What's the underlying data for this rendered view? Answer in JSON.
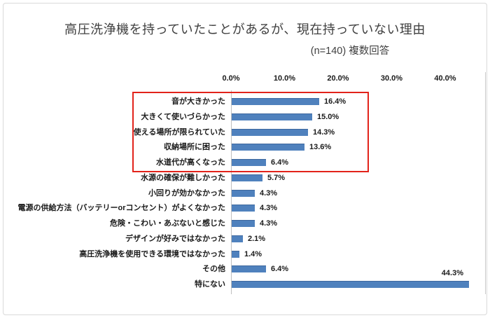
{
  "window": {
    "background": "#FFFFFF",
    "border_color": "#D9D9D9"
  },
  "chart": {
    "title": "高圧洗浄機を持っていたことがあるが、現在持っていない理由",
    "subtitle": "(n=140) 複数回答"
  },
  "chart_data": {
    "type": "bar",
    "orientation": "horizontal",
    "title": "高圧洗浄機を持っていたことがあるが、現在持っていない理由",
    "subtitle": "(n=140) 複数回答",
    "n": 140,
    "categories": [
      "音が大きかった",
      "大きくて使いづらかった",
      "使える場所が限られていた",
      "収納場所に困った",
      "水道代が高くなった",
      "水源の確保が難しかった",
      "小回りが効かなかった",
      "電源の供給方法（バッテリーorコンセント）がよくなかった",
      "危険・こわい・あぶないと感じた",
      "デザインが好みではなかった",
      "高圧洗浄機を使用できる環境ではなかった",
      "その他",
      "特にない"
    ],
    "values": [
      16.4,
      15.0,
      14.3,
      13.6,
      6.4,
      5.7,
      4.3,
      4.3,
      4.3,
      2.1,
      1.4,
      6.4,
      44.3
    ],
    "value_labels": [
      "16.4%",
      "15.0%",
      "14.3%",
      "13.6%",
      "6.4%",
      "5.7%",
      "4.3%",
      "4.3%",
      "4.3%",
      "2.1%",
      "1.4%",
      "6.4%",
      "44.3%"
    ],
    "x_ticks": [
      "0.0%",
      "10.0%",
      "20.0%",
      "30.0%",
      "40.0%"
    ],
    "x_tick_values": [
      0,
      10,
      20,
      30,
      40
    ],
    "xlim": [
      0,
      47.5
    ],
    "grid": false,
    "legend": "none",
    "data_label_position": "outside-end",
    "bar_color": "#4F81BD",
    "bar_border_color": "#3E689E",
    "axis_color": "#BFBFBF",
    "highlight": {
      "color": "#E2231A",
      "highlighted_categories": [
        "音が大きかった",
        "大きくて使いづらかった",
        "使える場所が限られていた",
        "収納場所に困った",
        "水道代が高くなった"
      ]
    }
  }
}
